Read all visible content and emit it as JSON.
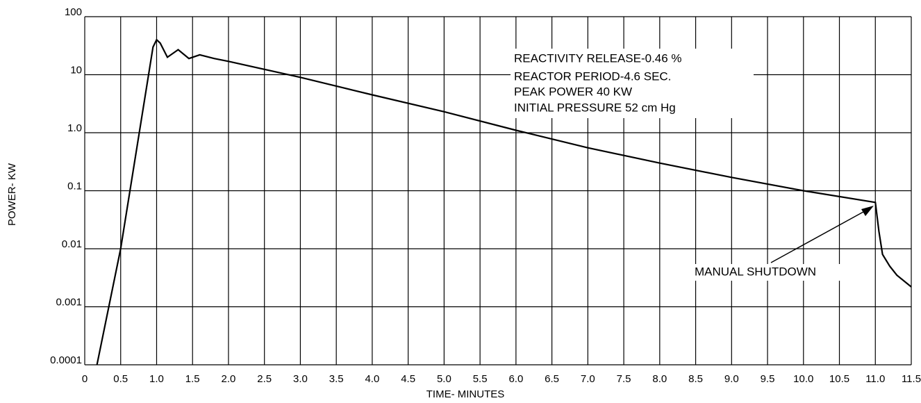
{
  "chart_data": {
    "type": "line",
    "x_label": "TIME- MINUTES",
    "y_label": "POWER- KW",
    "annotations": [
      "REACTIVITY RELEASE-0.46 %",
      "REACTOR PERIOD-4.6 SEC.",
      "PEAK POWER 40 KW",
      "INITIAL PRESSURE 52 cm Hg",
      "MANUAL SHUTDOWN"
    ],
    "x": [
      0.17,
      0.5,
      0.95,
      1.0,
      1.05,
      1.15,
      1.3,
      1.45,
      1.6,
      1.8,
      2.0,
      3.0,
      4.0,
      5.0,
      6.0,
      7.0,
      8.0,
      9.0,
      10.0,
      11.0,
      11.05,
      11.1,
      11.2,
      11.3,
      11.5
    ],
    "values": [
      0.0001,
      0.01,
      30,
      40,
      35,
      20,
      27,
      19,
      22,
      19,
      17,
      9,
      4.5,
      2.3,
      1.1,
      0.55,
      0.3,
      0.17,
      0.1,
      0.063,
      0.02,
      0.008,
      0.005,
      0.0035,
      0.0022
    ],
    "color": "#000000",
    "xlim": [
      0,
      11.5
    ],
    "xticks": [
      0,
      0.5,
      {
        "value": 1,
        "label": "1.0"
      },
      1.5,
      {
        "value": 2,
        "label": "2.0"
      },
      2.5,
      {
        "value": 3,
        "label": "3.0"
      },
      3.5,
      {
        "value": 4,
        "label": "4.0"
      },
      4.5,
      {
        "value": 5,
        "label": "5.0"
      },
      5.5,
      {
        "value": 6,
        "label": "6.0"
      },
      6.5,
      {
        "value": 7,
        "label": "7.0"
      },
      7.5,
      {
        "value": 8,
        "label": "8.0"
      },
      8.5,
      {
        "value": 9,
        "label": "9.0"
      },
      9.5,
      {
        "value": 10,
        "label": "10.0"
      },
      10.5,
      {
        "value": 11,
        "label": "11.0"
      },
      11.5
    ],
    "ylim": [
      0.0001,
      100
    ],
    "yticks": [
      0.0001,
      0.001,
      0.01,
      0.1,
      {
        "value": 1,
        "label": "1.0"
      },
      10,
      100
    ],
    "y_log": true,
    "grid": true
  }
}
